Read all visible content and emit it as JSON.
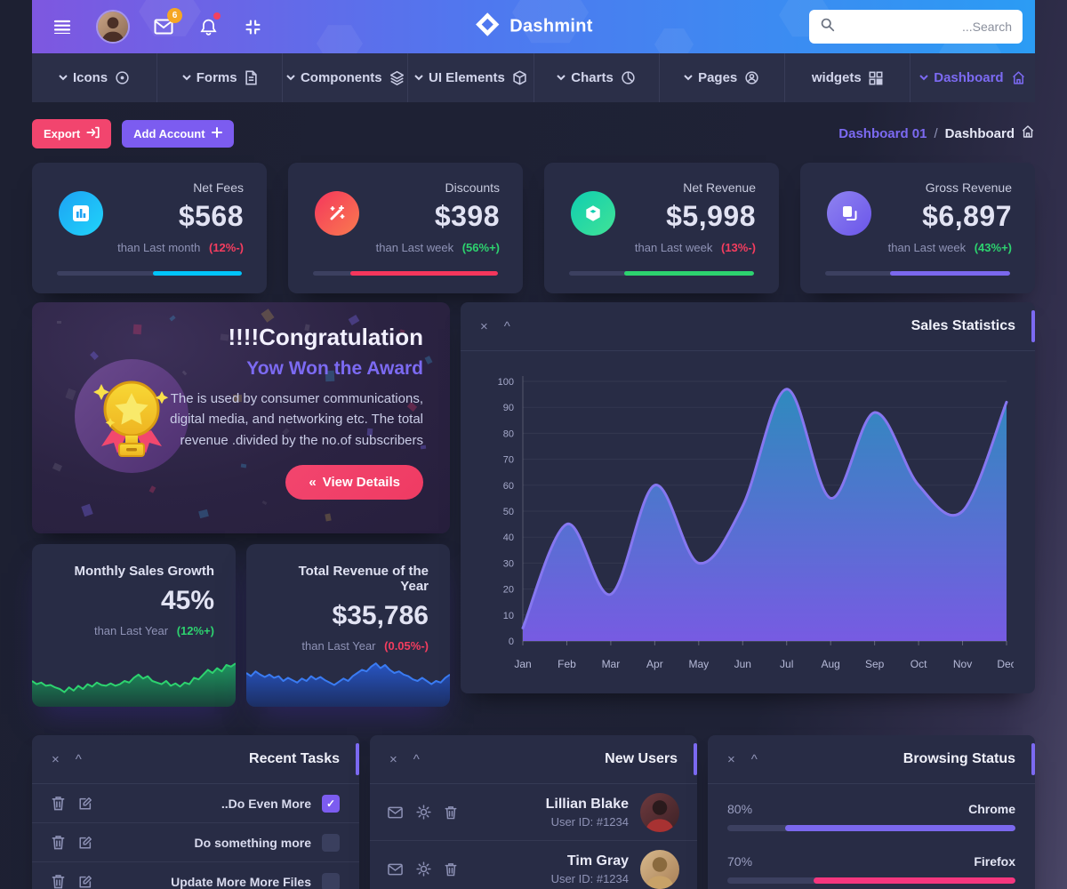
{
  "header": {
    "brand": "Dashmint",
    "mail_badge": "6",
    "search_placeholder": "...Search"
  },
  "nav": {
    "items": [
      {
        "label": "Icons",
        "icon": "target-icon"
      },
      {
        "label": "Forms",
        "icon": "file-icon"
      },
      {
        "label": "Components",
        "icon": "layers-icon"
      },
      {
        "label": "UI Elements",
        "icon": "package-icon"
      },
      {
        "label": "Charts",
        "icon": "pie-chart-icon"
      },
      {
        "label": "Pages",
        "icon": "user-circle-icon"
      },
      {
        "label": "widgets",
        "icon": "grid-icon"
      },
      {
        "label": "Dashboard",
        "icon": "home-icon",
        "active": true
      }
    ]
  },
  "toolbar": {
    "export_label": "Export",
    "add_account_label": "Add Account",
    "breadcrumb": {
      "parent": "Dashboard 01",
      "separator": "/",
      "current": "Dashboard"
    }
  },
  "stats": [
    {
      "title": "Net Fees",
      "value": "$568",
      "period": "than Last month",
      "delta": "(12%-)",
      "delta_color": "#f53d5f",
      "icon": "bar-chart-icon",
      "icon_colors": [
        "#1da2f3",
        "#20d4fa"
      ],
      "accent": "#00c4fa",
      "progress": 48
    },
    {
      "title": "Discounts",
      "value": "$398",
      "period": "than Last week",
      "delta": "(56%+)",
      "delta_color": "#2dd36f",
      "icon": "magic-wand-icon",
      "icon_colors": [
        "#f5365c",
        "#f97b4f"
      ],
      "accent": "#f5365c",
      "progress": 80
    },
    {
      "title": "Net Revenue",
      "value": "$5,998",
      "period": "than Last week",
      "delta": "(13%-)",
      "delta_color": "#f53d5f",
      "icon": "cube-icon",
      "icon_colors": [
        "#0fceb1",
        "#41e396"
      ],
      "accent": "#2dd36f",
      "progress": 70
    },
    {
      "title": "Gross Revenue",
      "value": "$6,897",
      "period": "than Last week",
      "delta": "(43%+)",
      "delta_color": "#2dd36f",
      "icon": "copy-icon",
      "icon_colors": [
        "#8f83f0",
        "#6a55ea"
      ],
      "accent": "#7b68ee",
      "progress": 65
    }
  ],
  "congratulation": {
    "title": "!!!!Congratulation",
    "subtitle": "Yow Won the Award",
    "body": "The is used by consumer communications, digital media, and networking etc. The total revenue .divided by the no.of subscribers",
    "button_icon": "«",
    "button_label": "View Details"
  },
  "growth_card": {
    "title": "Monthly Sales Growth",
    "value": "45%",
    "period": "than Last Year",
    "delta": "(12%+)",
    "delta_color": "#2dd36f"
  },
  "revenue_card": {
    "title": "Total Revenue of the Year",
    "value": "$35,786",
    "period": "than Last Year",
    "delta": "(0.05%-)",
    "delta_color": "#f53d5f"
  },
  "recent_tasks": {
    "title": "Recent Tasks",
    "tasks": [
      {
        "label": "..Do Even More",
        "checked": true
      },
      {
        "label": "Do something more",
        "checked": false
      },
      {
        "label": "Update More More Files",
        "checked": false
      }
    ]
  },
  "new_users": {
    "title": "New Users",
    "users": [
      {
        "name": "Lillian Blake",
        "user_id": "User ID: #1234"
      },
      {
        "name": "Tim Gray",
        "user_id": "User ID: #1234"
      }
    ]
  },
  "browsing_status": {
    "title": "Browsing Status",
    "items": [
      {
        "percent": "80%",
        "label": "Chrome",
        "value": 80,
        "color": "#7b68ee"
      },
      {
        "percent": "70%",
        "label": "Firefox",
        "value": 70,
        "color": "#f5367e"
      }
    ]
  },
  "icons": {
    "close": "×",
    "collapse": "^"
  },
  "chart_data": [
    {
      "id": "sales-statistics-chart",
      "type": "area",
      "title": "Sales Statistics",
      "x": [
        "Jan",
        "Feb",
        "Mar",
        "Apr",
        "May",
        "Jun",
        "Jul",
        "Aug",
        "Sep",
        "Oct",
        "Nov",
        "Dec"
      ],
      "values": [
        5,
        45,
        18,
        60,
        30,
        52,
        97,
        55,
        88,
        60,
        50,
        92
      ],
      "ylim": [
        0,
        100
      ],
      "ytick_step": 10,
      "grid": true,
      "legend": "none",
      "line_color": "#8677f0",
      "fill_top": "#2f8fc4",
      "fill_bottom": "#7e5ff0"
    },
    {
      "id": "growth-spark",
      "type": "area",
      "values": [
        30,
        26,
        28,
        24,
        25,
        22,
        20,
        16,
        22,
        18,
        24,
        20,
        26,
        23,
        28,
        25,
        24,
        27,
        24,
        26,
        30,
        28,
        34,
        38,
        33,
        36,
        30,
        28,
        26,
        30,
        24,
        27,
        23,
        28,
        26,
        34,
        32,
        38,
        44,
        40,
        46,
        42,
        50,
        48,
        52
      ],
      "ymax": 60,
      "line_color": "#2dd36f",
      "fill_top": "#1f9e62",
      "fill_bottom": "#17453a"
    },
    {
      "id": "revenue-spark",
      "type": "area",
      "values": [
        40,
        36,
        42,
        38,
        35,
        38,
        34,
        36,
        30,
        34,
        31,
        28,
        33,
        30,
        36,
        32,
        35,
        31,
        28,
        25,
        29,
        33,
        30,
        36,
        40,
        44,
        42,
        48,
        52,
        46,
        50,
        44,
        40,
        42,
        38,
        36,
        32,
        30,
        34,
        30,
        26,
        30,
        28,
        34,
        38
      ],
      "ymax": 60,
      "line_color": "#3a7bf2",
      "fill_top": "#2857c8",
      "fill_bottom": "#1b2f66"
    }
  ]
}
